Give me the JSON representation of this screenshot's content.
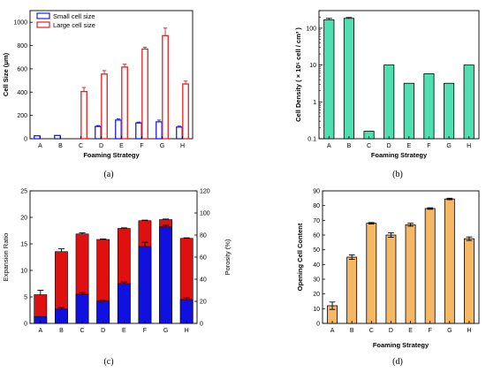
{
  "chart_data": [
    {
      "panel": "(a)",
      "type": "bar",
      "categories": [
        "A",
        "B",
        "C",
        "D",
        "E",
        "F",
        "G",
        "H"
      ],
      "xlabel": "Foaming Strategy",
      "ylabel": "Cell Size (μm)",
      "ylim": [
        0,
        1100
      ],
      "yticks": [
        "0",
        "200",
        "400",
        "600",
        "800",
        "1000"
      ],
      "legend": "top-left",
      "series": [
        {
          "name": "Small cell size",
          "color": "#1f1fe6",
          "values": [
            25,
            28,
            null,
            105,
            160,
            135,
            145,
            100
          ],
          "errors": [
            0,
            0,
            0,
            8,
            10,
            8,
            15,
            8
          ]
        },
        {
          "name": "Large cell size",
          "color": "#e61f1f",
          "values": [
            null,
            null,
            405,
            555,
            615,
            770,
            885,
            470
          ],
          "errors": [
            0,
            0,
            35,
            30,
            25,
            15,
            65,
            25
          ]
        }
      ]
    },
    {
      "panel": "(b)",
      "type": "bar",
      "categories": [
        "A",
        "B",
        "C",
        "D",
        "E",
        "F",
        "G",
        "H"
      ],
      "xlabel": "Foaming Strategy",
      "ylabel": "Cell Density ( × 10⁵ cell / cm³ )",
      "yscale": "log",
      "ylim": [
        0.1,
        300
      ],
      "yticks": [
        "0.1",
        "1",
        "10",
        "100"
      ],
      "color": "#4fdfb0",
      "values": [
        170,
        185,
        0.16,
        10,
        3.2,
        5.8,
        3.2,
        10
      ],
      "errors": [
        15,
        10,
        0,
        0,
        0,
        0,
        0,
        0
      ]
    },
    {
      "panel": "(c)",
      "type": "bar",
      "categories": [
        "A",
        "B",
        "C",
        "D",
        "E",
        "F",
        "G",
        "H"
      ],
      "xlabel": "",
      "ylabel": "Expansion Ratio",
      "ylim": [
        0,
        25
      ],
      "yticks": [
        "0",
        "5",
        "10",
        "15",
        "20",
        "25"
      ],
      "y2label": "Porosity (%)",
      "y2lim": [
        0,
        120
      ],
      "y2ticks": [
        "0",
        "20",
        "40",
        "60",
        "80",
        "100",
        "120"
      ],
      "series": [
        {
          "name": "Expansion Ratio",
          "color": "#1010e0",
          "axis": "left",
          "values": [
            1.3,
            2.7,
            5.5,
            4.2,
            7.5,
            14.5,
            18.2,
            4.5
          ],
          "errors": [
            0,
            0.3,
            0.3,
            0.2,
            0.3,
            0.8,
            0.3,
            0.3
          ]
        },
        {
          "name": "Porosity",
          "color": "#e01010",
          "axis": "right",
          "values": [
            26,
            65,
            81,
            76,
            86,
            93,
            94,
            77
          ],
          "errors": [
            4,
            2.5,
            1,
            0.5,
            0.5,
            0.5,
            0.5,
            0.5
          ]
        }
      ]
    },
    {
      "panel": "(d)",
      "type": "bar",
      "categories": [
        "A",
        "B",
        "C",
        "D",
        "E",
        "F",
        "G",
        "H"
      ],
      "xlabel": "Foaming Strategy",
      "ylabel": "Opening Cell Content",
      "ylim": [
        0,
        90
      ],
      "yticks": [
        "0",
        "10",
        "20",
        "30",
        "40",
        "50",
        "60",
        "70",
        "80",
        "90"
      ],
      "color": "#f7b866",
      "values": [
        12,
        45,
        68,
        60,
        67,
        78,
        84.5,
        57.5
      ],
      "errors": [
        2.5,
        1.5,
        0.5,
        1.5,
        1,
        0.5,
        0.5,
        1.2
      ]
    }
  ]
}
